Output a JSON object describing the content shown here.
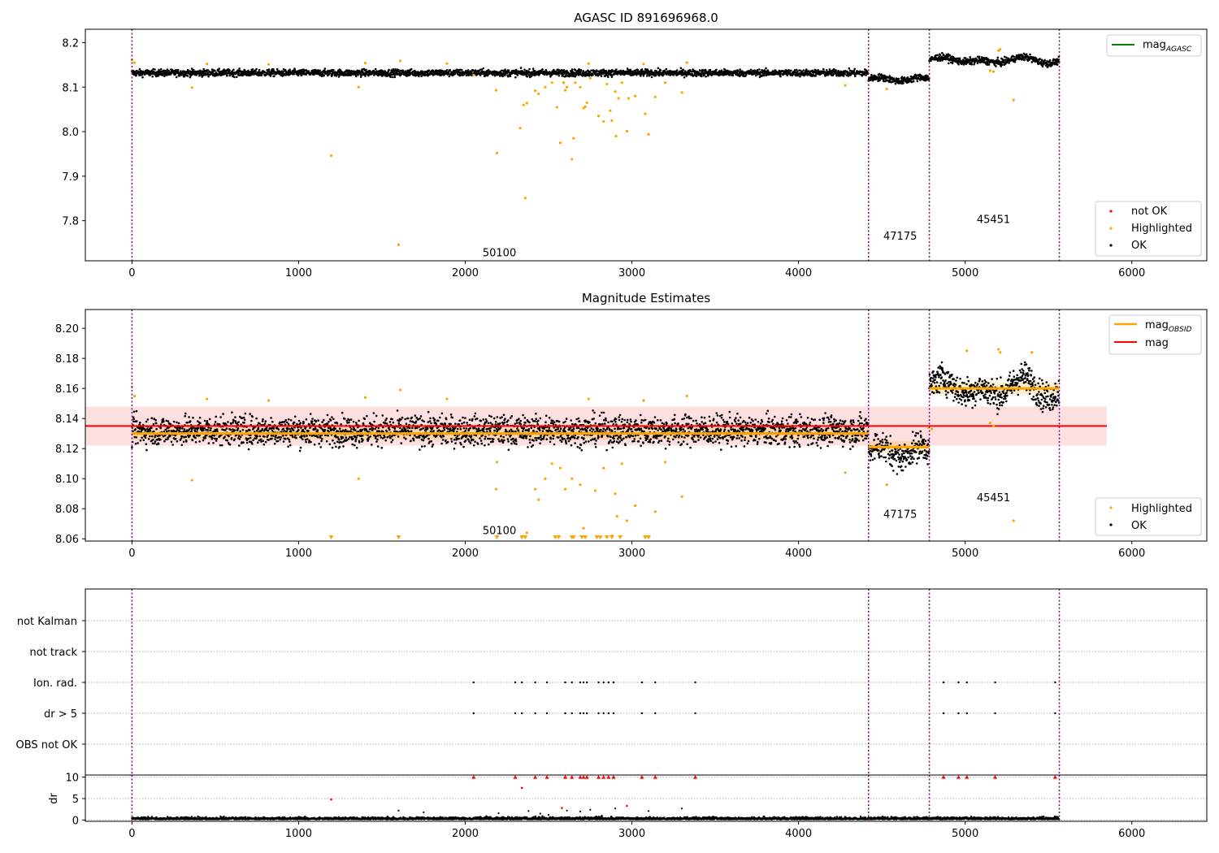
{
  "chart_data": [
    {
      "type": "scatter",
      "title": "AGASC ID 891696968.0",
      "xlim": [
        -280,
        6450
      ],
      "ylim": [
        7.71,
        8.23
      ],
      "x_ticks": [
        0,
        1000,
        2000,
        3000,
        4000,
        5000,
        6000
      ],
      "x_tick_labels": [
        "0",
        "1000",
        "2000",
        "3000",
        "4000",
        "5000",
        "6000"
      ],
      "y_ticks": [
        7.8,
        7.9,
        8.0,
        8.1,
        8.2
      ],
      "y_tick_labels": [
        "7.8",
        "7.9",
        "8.0",
        "8.1",
        "8.2"
      ],
      "grid": false,
      "legend_top": {
        "placement": "top-right",
        "entries": [
          {
            "label": "mag",
            "subscript": "AGASC",
            "color": "#008000",
            "kind": "line"
          }
        ]
      },
      "legend_bottom": {
        "placement": "bottom-right",
        "entries": [
          {
            "label": "not OK",
            "color": "#ff0000",
            "kind": "dot"
          },
          {
            "label": "Highlighted",
            "color": "#ffa500",
            "kind": "dot"
          },
          {
            "label": "OK",
            "color": "#000000",
            "kind": "dot"
          }
        ]
      },
      "obsid_boundaries": [
        0,
        4420,
        4785,
        5565
      ],
      "obsid_labels": [
        {
          "text": "50100",
          "x": 2205,
          "y": 7.72
        },
        {
          "text": "47175",
          "x": 4610,
          "y": 7.757
        },
        {
          "text": "45451",
          "x": 5170,
          "y": 7.795
        }
      ],
      "ok_segments": [
        {
          "x0": 0,
          "x1": 4420,
          "mean": 8.132,
          "spread": 0.007
        },
        {
          "x0": 4420,
          "x1": 4785,
          "mean": 8.118,
          "spread": 0.007
        },
        {
          "x0": 4785,
          "x1": 5565,
          "mean": 8.16,
          "spread": 0.007
        }
      ],
      "highlighted_points": [
        [
          0,
          8.161
        ],
        [
          15,
          8.155
        ],
        [
          360,
          8.099
        ],
        [
          450,
          8.152
        ],
        [
          820,
          8.151
        ],
        [
          1195,
          7.946
        ],
        [
          1360,
          8.1
        ],
        [
          1400,
          8.154
        ],
        [
          1610,
          8.159
        ],
        [
          1600,
          7.746
        ],
        [
          1890,
          8.153
        ],
        [
          2050,
          8.127
        ],
        [
          2185,
          8.093
        ],
        [
          2190,
          7.952
        ],
        [
          2330,
          8.008
        ],
        [
          2350,
          8.06
        ],
        [
          2360,
          7.851
        ],
        [
          2370,
          8.064
        ],
        [
          2420,
          8.092
        ],
        [
          2440,
          8.085
        ],
        [
          2480,
          8.1
        ],
        [
          2520,
          8.11
        ],
        [
          2550,
          8.055
        ],
        [
          2570,
          7.975
        ],
        [
          2590,
          8.11
        ],
        [
          2600,
          8.093
        ],
        [
          2610,
          8.1
        ],
        [
          2640,
          7.938
        ],
        [
          2650,
          7.985
        ],
        [
          2660,
          8.11
        ],
        [
          2690,
          8.1
        ],
        [
          2710,
          8.053
        ],
        [
          2720,
          8.056
        ],
        [
          2730,
          8.065
        ],
        [
          2740,
          8.153
        ],
        [
          2750,
          8.12
        ],
        [
          2800,
          8.035
        ],
        [
          2830,
          8.023
        ],
        [
          2850,
          8.107
        ],
        [
          2870,
          8.047
        ],
        [
          2880,
          8.025
        ],
        [
          2900,
          8.09
        ],
        [
          2905,
          7.99
        ],
        [
          2920,
          8.075
        ],
        [
          2940,
          8.11
        ],
        [
          2970,
          8.001
        ],
        [
          2980,
          8.075
        ],
        [
          3020,
          8.08
        ],
        [
          3070,
          8.152
        ],
        [
          3080,
          8.04
        ],
        [
          3100,
          7.994
        ],
        [
          3140,
          8.078
        ],
        [
          3200,
          8.11
        ],
        [
          3300,
          8.088
        ],
        [
          3330,
          8.155
        ],
        [
          4280,
          8.104
        ],
        [
          4530,
          8.096
        ],
        [
          5150,
          8.137
        ],
        [
          5170,
          8.135
        ],
        [
          5200,
          8.182
        ],
        [
          5210,
          8.185
        ],
        [
          5290,
          8.071
        ]
      ]
    },
    {
      "type": "scatter",
      "title": "Magnitude Estimates",
      "xlim": [
        -280,
        6450
      ],
      "ylim": [
        8.0585,
        8.2125
      ],
      "x_ticks": [
        0,
        1000,
        2000,
        3000,
        4000,
        5000,
        6000
      ],
      "x_tick_labels": [
        "0",
        "1000",
        "2000",
        "3000",
        "4000",
        "5000",
        "6000"
      ],
      "y_ticks": [
        8.06,
        8.08,
        8.1,
        8.12,
        8.14,
        8.16,
        8.18,
        8.2
      ],
      "y_tick_labels": [
        "8.06",
        "8.08",
        "8.10",
        "8.12",
        "8.14",
        "8.16",
        "8.18",
        "8.20"
      ],
      "grid": false,
      "legend_top": {
        "placement": "top-right",
        "entries": [
          {
            "label": "mag",
            "subscript": "OBSID",
            "color": "#ffa500",
            "kind": "line"
          },
          {
            "label": "mag",
            "subscript": "",
            "color": "#ff0000",
            "kind": "line"
          }
        ]
      },
      "legend_bottom": {
        "placement": "bottom-right",
        "entries": [
          {
            "label": "Highlighted",
            "color": "#ffa500",
            "kind": "dot"
          },
          {
            "label": "OK",
            "color": "#000000",
            "kind": "dot"
          }
        ]
      },
      "obsid_boundaries": [
        0,
        4420,
        4785,
        5565
      ],
      "obsid_labels": [
        {
          "text": "50100",
          "x": 2205,
          "y": 8.063
        },
        {
          "text": "47175",
          "x": 4610,
          "y": 8.074
        },
        {
          "text": "45451",
          "x": 5170,
          "y": 8.085
        }
      ],
      "mag_line": {
        "value": 8.135,
        "band": [
          8.122,
          8.148
        ],
        "x0": -280,
        "x1": 5850
      },
      "obsid_mags": [
        {
          "x0": 0,
          "x1": 4420,
          "value": 8.13
        },
        {
          "x0": 4420,
          "x1": 4785,
          "value": 8.121
        },
        {
          "x0": 4785,
          "x1": 5565,
          "value": 8.16
        }
      ],
      "ok_segments": [
        {
          "x0": 0,
          "x1": 4420,
          "mean": 8.132,
          "spread": 0.009
        },
        {
          "x0": 4420,
          "x1": 4785,
          "mean": 8.118,
          "spread": 0.009
        },
        {
          "x0": 4785,
          "x1": 5565,
          "mean": 8.16,
          "spread": 0.009
        }
      ],
      "highlighted_points": [
        [
          0,
          8.161
        ],
        [
          15,
          8.155
        ],
        [
          360,
          8.099
        ],
        [
          450,
          8.153
        ],
        [
          820,
          8.152
        ],
        [
          1360,
          8.1
        ],
        [
          1400,
          8.154
        ],
        [
          1610,
          8.159
        ],
        [
          1890,
          8.153
        ],
        [
          2185,
          8.093
        ],
        [
          2190,
          8.111
        ],
        [
          2370,
          8.064
        ],
        [
          2420,
          8.093
        ],
        [
          2440,
          8.086
        ],
        [
          2480,
          8.1
        ],
        [
          2520,
          8.11
        ],
        [
          2570,
          8.107
        ],
        [
          2600,
          8.093
        ],
        [
          2640,
          8.1
        ],
        [
          2690,
          8.096
        ],
        [
          2710,
          8.067
        ],
        [
          2740,
          8.153
        ],
        [
          2780,
          8.092
        ],
        [
          2830,
          8.107
        ],
        [
          2880,
          8.062
        ],
        [
          2900,
          8.09
        ],
        [
          2910,
          8.075
        ],
        [
          2940,
          8.11
        ],
        [
          2970,
          8.072
        ],
        [
          3020,
          8.082
        ],
        [
          3070,
          8.152
        ],
        [
          3140,
          8.078
        ],
        [
          3200,
          8.111
        ],
        [
          3300,
          8.088
        ],
        [
          3330,
          8.155
        ],
        [
          4280,
          8.104
        ],
        [
          4530,
          8.096
        ],
        [
          4780,
          8.134
        ],
        [
          4800,
          8.133
        ],
        [
          5150,
          8.137
        ],
        [
          5170,
          8.135
        ],
        [
          5200,
          8.186
        ],
        [
          5210,
          8.184
        ],
        [
          5290,
          8.072
        ],
        [
          5010,
          8.185
        ],
        [
          5400,
          8.184
        ]
      ],
      "offscale_markers": [
        1195,
        1600,
        2190,
        2340,
        2360,
        2540,
        2560,
        2640,
        2650,
        2700,
        2720,
        2790,
        2810,
        2850,
        2880,
        2930,
        3080,
        3100
      ]
    },
    {
      "type": "scatter",
      "title": "",
      "xlim": [
        -280,
        6450
      ],
      "categories": [
        "not Kalman",
        "not track",
        "Ion. rad.",
        "dr > 5",
        "OBS not OK"
      ],
      "grid": true,
      "obsid_boundaries": [
        0,
        4420,
        4785,
        5565
      ],
      "flag_times": [
        2050,
        2300,
        2340,
        2420,
        2490,
        2600,
        2640,
        2690,
        2710,
        2730,
        2800,
        2830,
        2860,
        2890,
        3060,
        3140,
        3380,
        4870,
        4960,
        5010,
        5180,
        5540
      ]
    },
    {
      "type": "scatter",
      "title": "",
      "xlim": [
        -280,
        6450
      ],
      "ylim": [
        -0.3,
        10.5
      ],
      "ylabel": "dr",
      "y_ticks": [
        0,
        5,
        10
      ],
      "y_tick_labels": [
        "0",
        "5",
        "10"
      ],
      "x_ticks": [
        0,
        1000,
        2000,
        3000,
        4000,
        5000,
        6000
      ],
      "x_tick_labels": [
        "0",
        "1000",
        "2000",
        "3000",
        "4000",
        "5000",
        "6000"
      ],
      "grid": true,
      "obsid_boundaries": [
        0,
        4420,
        4785,
        5565
      ],
      "red_triangles_at_10": [
        2050,
        2300,
        2420,
        2490,
        2600,
        2640,
        2690,
        2710,
        2730,
        2800,
        2830,
        2860,
        2890,
        3060,
        3140,
        3380,
        4870,
        4960,
        5010,
        5180,
        5540
      ],
      "red_points": [
        [
          1195,
          4.8
        ],
        [
          2340,
          7.5
        ],
        [
          2580,
          2.8
        ],
        [
          2970,
          3.3
        ]
      ],
      "black_outliers": [
        [
          1600,
          2.2
        ],
        [
          1750,
          1.8
        ],
        [
          2200,
          1.6
        ],
        [
          2380,
          2.1
        ],
        [
          2450,
          1.5
        ],
        [
          2610,
          2.2
        ],
        [
          2690,
          2.0
        ],
        [
          2750,
          2.4
        ],
        [
          2900,
          2.7
        ],
        [
          3100,
          2.1
        ],
        [
          3300,
          2.7
        ],
        [
          2500,
          1.2
        ],
        [
          2820,
          1.0
        ]
      ]
    }
  ]
}
